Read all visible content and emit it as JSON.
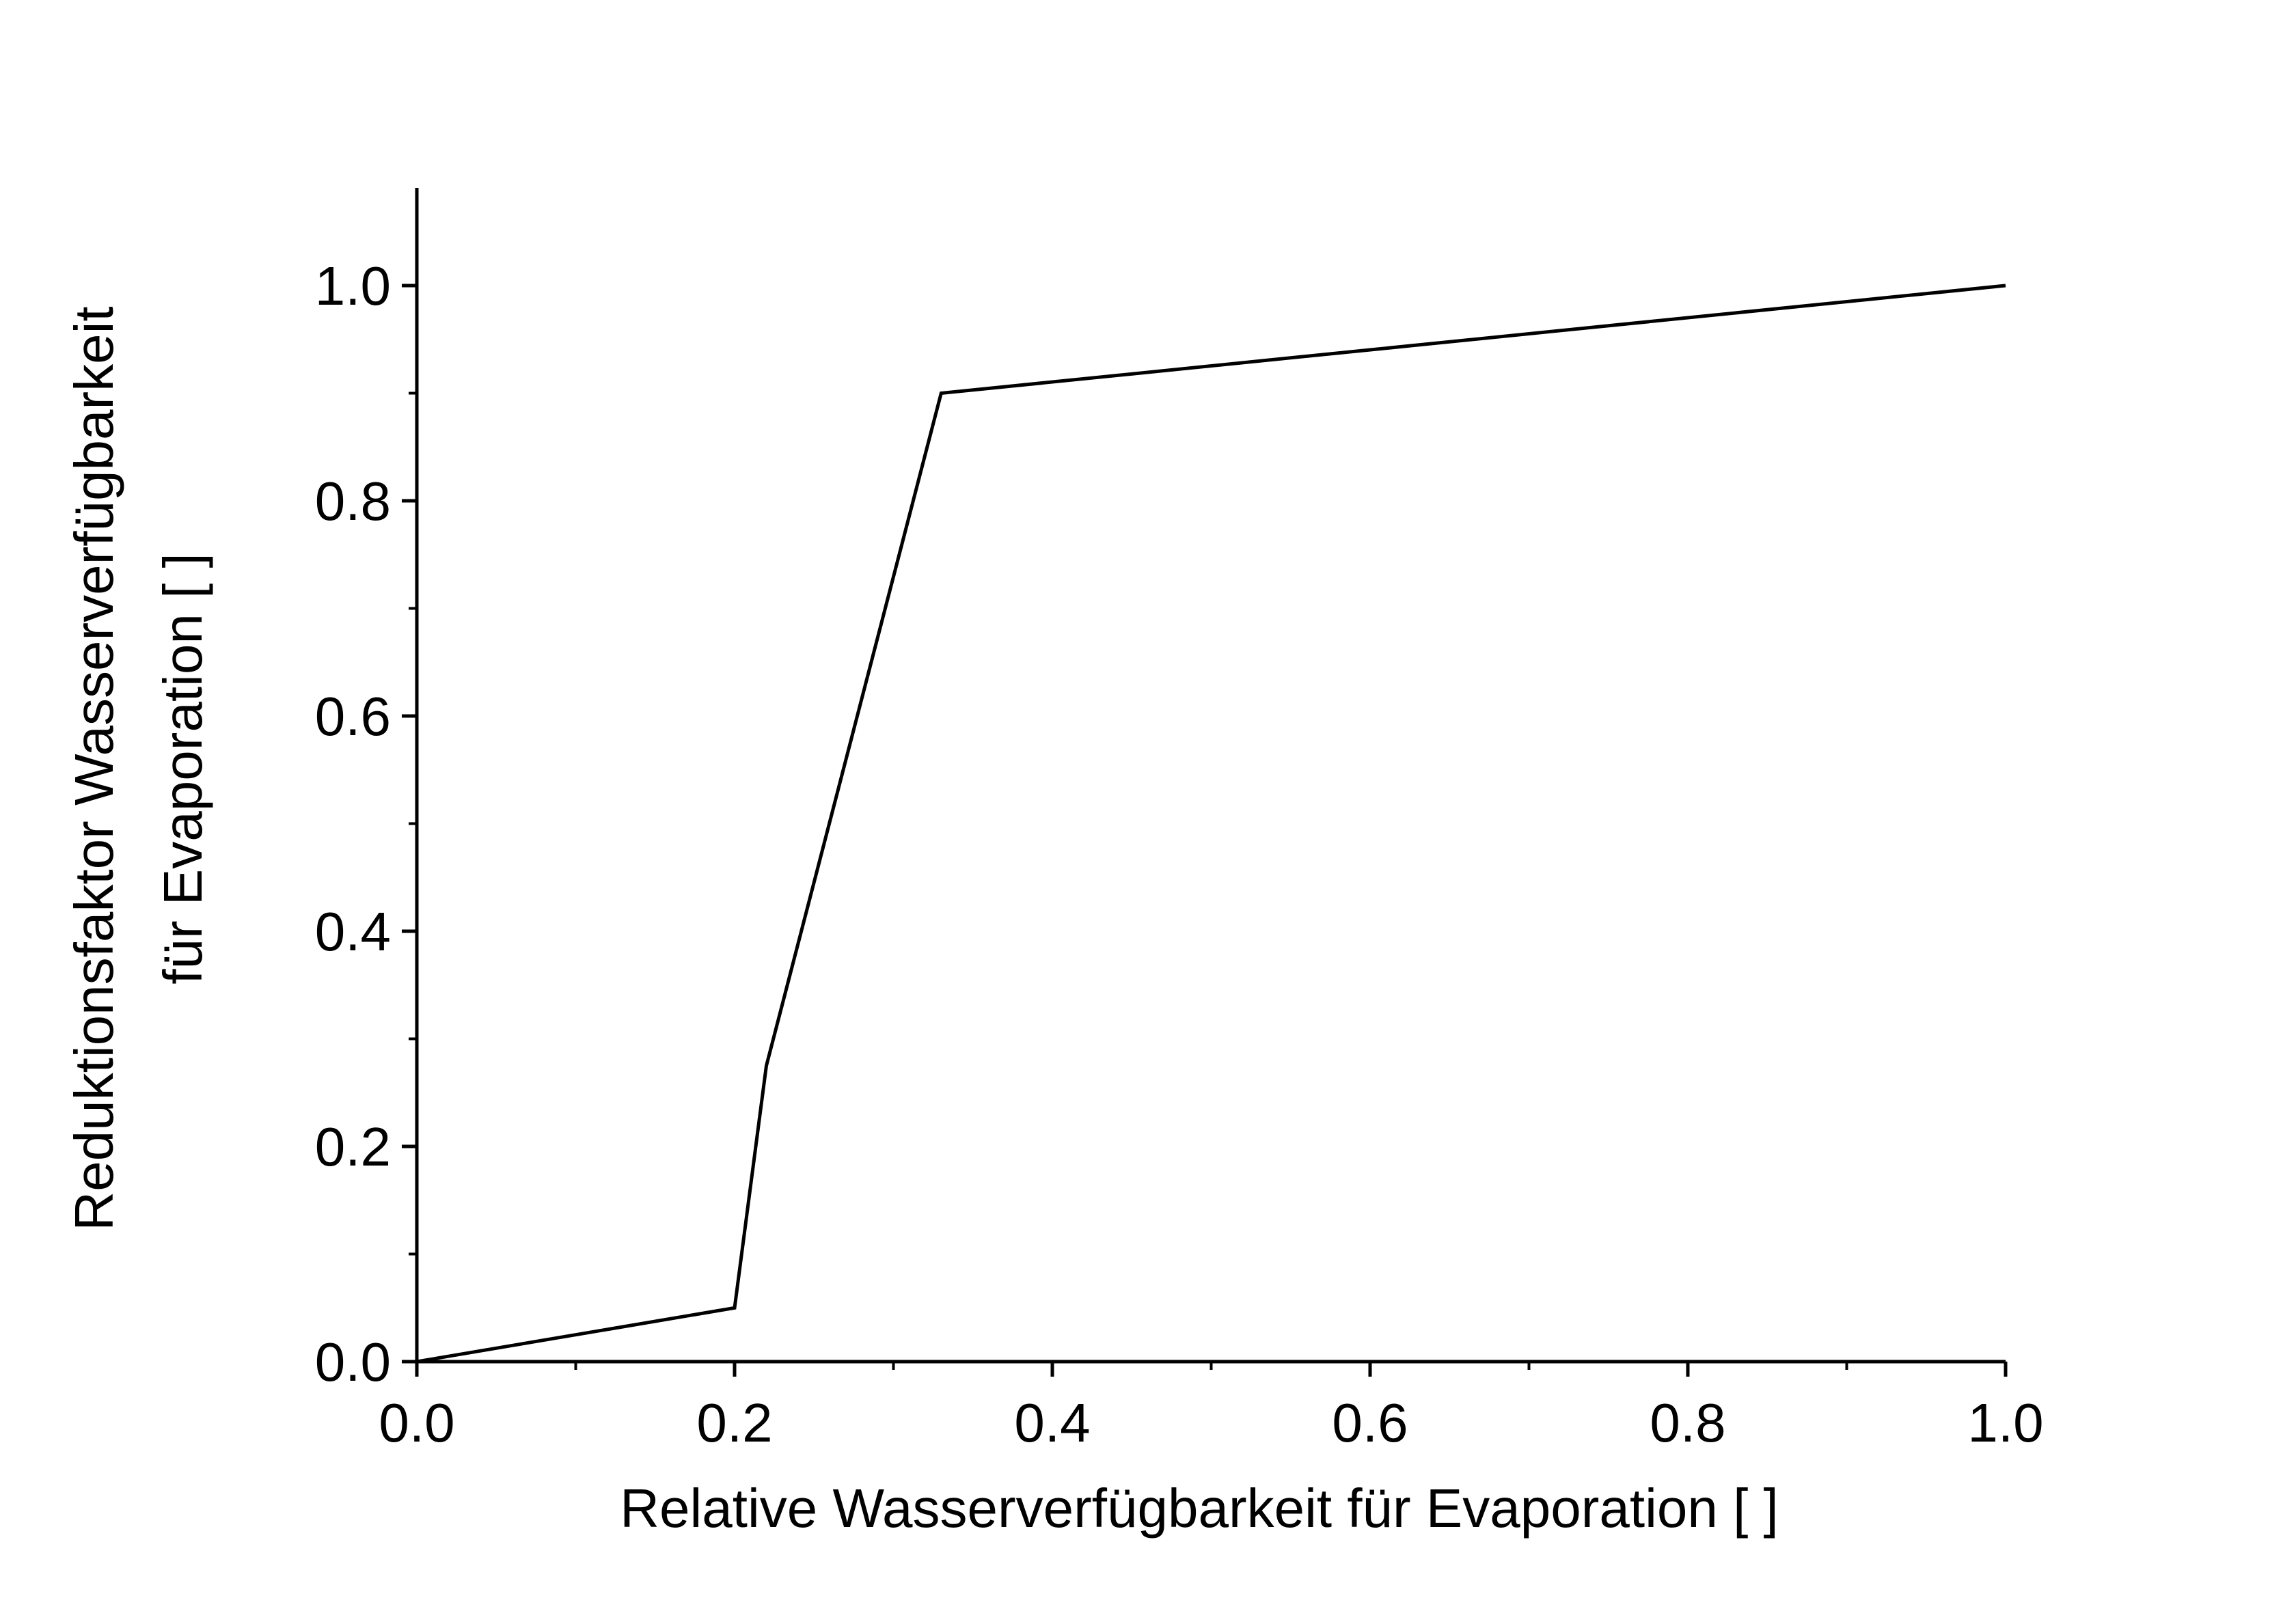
{
  "chart_data": {
    "type": "line",
    "title": "",
    "xlabel": "Relative Wasserverfügbarkeit für Evaporation [ ]",
    "ylabel_lines": [
      "Reduktionsfaktor Wasserverfügbarkeit",
      "für Evaporation [ ]"
    ],
    "xlim": [
      0.0,
      1.0
    ],
    "ylim": [
      0.0,
      1.09
    ],
    "x_ticks": [
      0.0,
      0.2,
      0.4,
      0.6,
      0.8,
      1.0
    ],
    "x_tick_labels": [
      "0.0",
      "0.2",
      "0.4",
      "0.6",
      "0.8",
      "1.0"
    ],
    "y_ticks": [
      0.0,
      0.2,
      0.4,
      0.6,
      0.8,
      1.0
    ],
    "y_tick_labels": [
      "0.0",
      "0.2",
      "0.4",
      "0.6",
      "0.8",
      "1.0"
    ],
    "x_minor_ticks": [
      0.1,
      0.3,
      0.5,
      0.7,
      0.9
    ],
    "y_minor_ticks": [
      0.1,
      0.3,
      0.5,
      0.7,
      0.9
    ],
    "grid": false,
    "legend": "none",
    "series": [
      {
        "x": [
          0.0,
          0.2,
          0.22,
          0.33,
          1.0
        ],
        "y": [
          0.0,
          0.05,
          0.275,
          0.9,
          1.0
        ],
        "color": "#000000"
      }
    ]
  }
}
